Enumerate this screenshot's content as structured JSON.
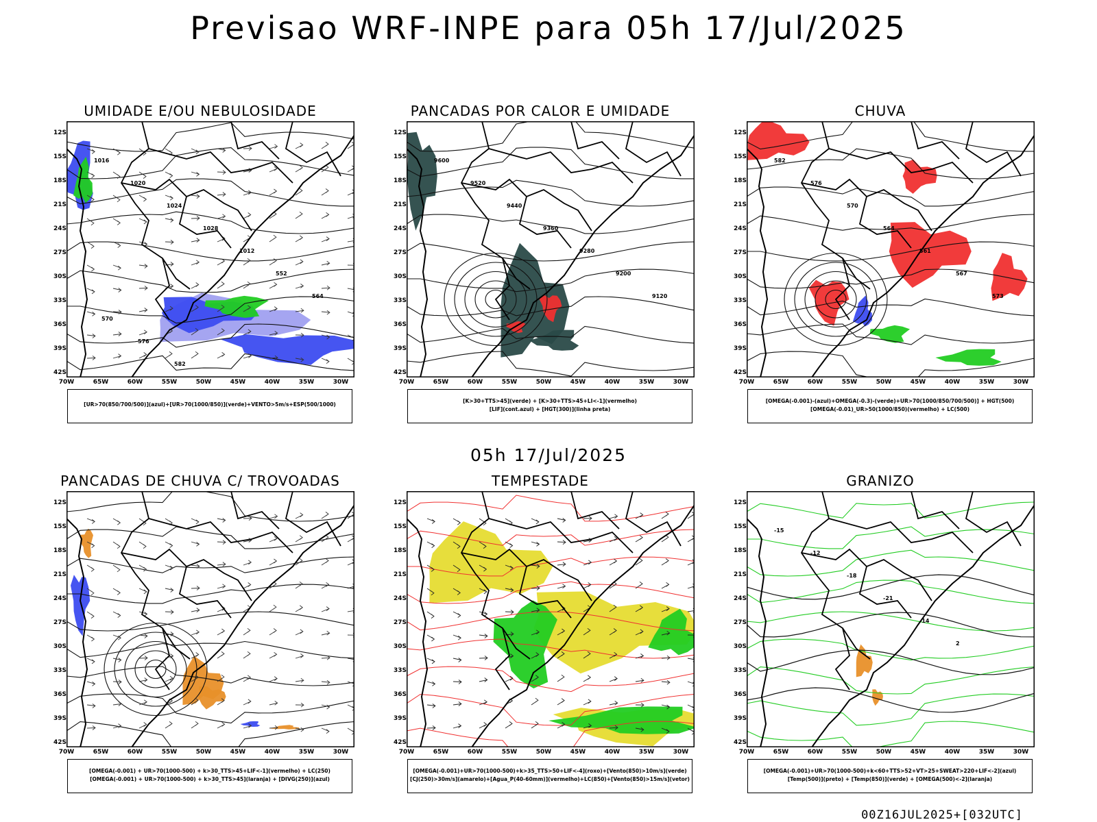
{
  "title": "Previsao WRF-INPE  para 05h 17/Jul/2025",
  "mid_title": "05h 17/Jul/2025",
  "footer": "00Z16JUL2025+[032UTC]",
  "lat_labels": [
    "12S",
    "15S",
    "18S",
    "21S",
    "24S",
    "27S",
    "30S",
    "33S",
    "36S",
    "39S",
    "42S"
  ],
  "lon_labels": [
    "70W",
    "65W",
    "60W",
    "55W",
    "50W",
    "45W",
    "40W",
    "35W",
    "30W"
  ],
  "colors": {
    "blue": "#3c4cf0",
    "green": "#22cc22",
    "red": "#f03030",
    "darkteal": "#2a4a48",
    "yellow": "#e6dc32",
    "orange": "#e8902a",
    "purple": "#a0a0f0"
  },
  "panels": [
    {
      "title": "UMIDADE E/OU NEBULOSIDADE",
      "legend": [
        "[UR>70(850/700/500)](azul)+[UR>70(1000/850)](verde)+VENTO>5m/s+ESP(500/1000)"
      ],
      "contour_labels": [
        "1016",
        "1020",
        "1024",
        "1028",
        "1012",
        "552",
        "564",
        "570",
        "576",
        "582"
      ]
    },
    {
      "title": "PANCADAS POR CALOR E UMIDADE",
      "legend": [
        "[K>30+TTS>45](verde) + [K>30+TTS>45+LI<-1](vermelho)",
        "[LIF](cont.azul) + [HGT(300)](linha preta)"
      ],
      "contour_labels": [
        "9600",
        "9520",
        "9440",
        "9360",
        "9280",
        "9200",
        "9120"
      ]
    },
    {
      "title": "CHUVA",
      "legend": [
        "[OMEGA(-0.001)-(azul)+OMEGA(-0.3)-(verde)+UR>70(1000/850/700/500)] + HGT(500)",
        "[OMEGA(-0.01)_UR>50(1000/850)(vermelho) + LC(500)"
      ],
      "contour_labels": [
        "582",
        "576",
        "570",
        "564",
        "561",
        "567",
        "573"
      ]
    },
    {
      "title": "PANCADAS DE CHUVA C/ TROVOADAS",
      "legend": [
        "[OMEGA(-0.001) + UR>70(1000-500) + k>30_TTS>45+LIF<-1](vermelho) + LC(250)",
        "[OMEGA(-0.001) + UR>70(1000-500) + k>30_TTS>45](laranja) + [DIVG(250)](azul)"
      ],
      "contour_labels": []
    },
    {
      "title": "TEMPESTADE",
      "legend": [
        "[OMEGA(-0.001)+UR>70(1000-500)+k>35_TTS>50+LIF<-4](roxo)+[Vento(850)>10m/s](verde)",
        "[CJ(250)>30m/s](amarelo)+[Agua_P(40-60mm)](vermelho)+LC(850)+[Vento(850)>15m/s](vetor)"
      ],
      "contour_labels": []
    },
    {
      "title": "GRANIZO",
      "legend": [
        "[OMEGA(-0.001)+UR>70(1000-500)+k<60+TTS>52+VT>25+SWEAT>220+LIF<-2](azul)",
        "[Temp(500)](preto) + [Temp(850)](verde) + [OMEGA(500)<-2](laranja)"
      ],
      "contour_labels": [
        "-15",
        "-12",
        "-18",
        "-21",
        "-14",
        "2"
      ]
    }
  ]
}
